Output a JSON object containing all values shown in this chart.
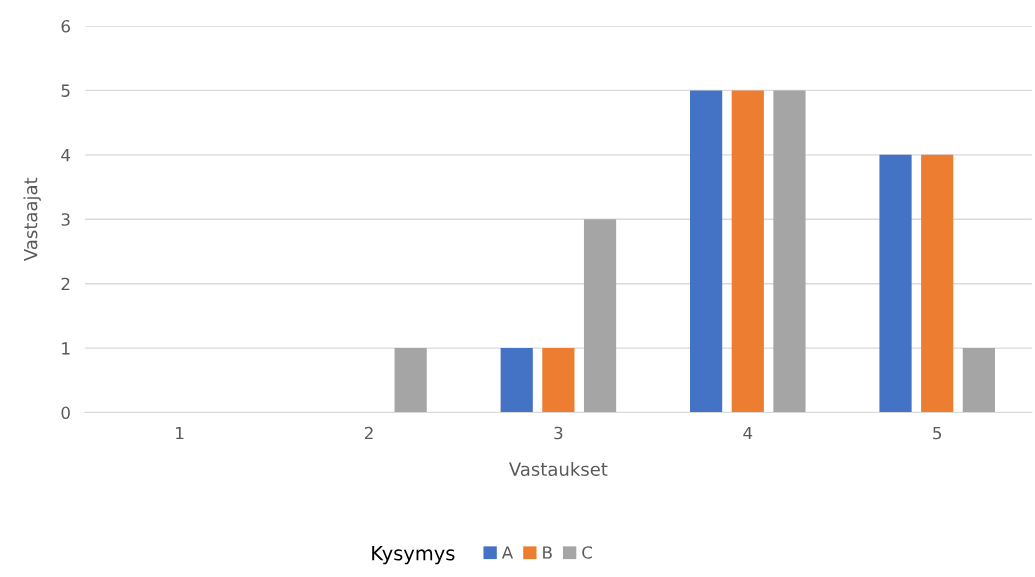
{
  "chart_data": {
    "type": "bar",
    "xlabel": "Vastaukset",
    "ylabel": "Vastaajat",
    "legend_title": "Kysymys",
    "categories": [
      "1",
      "2",
      "3",
      "4",
      "5"
    ],
    "series": [
      {
        "name": "A",
        "color": "#4472c4",
        "values": [
          0,
          0,
          1,
          5,
          4
        ]
      },
      {
        "name": "B",
        "color": "#ed7d31",
        "values": [
          0,
          0,
          1,
          5,
          4
        ]
      },
      {
        "name": "C",
        "color": "#a5a5a5",
        "values": [
          0,
          1,
          3,
          5,
          1
        ]
      }
    ],
    "ylim": [
      0,
      6
    ],
    "yticks": [
      0,
      1,
      2,
      3,
      4,
      5,
      6
    ],
    "grid": "y",
    "legend": "bottom"
  }
}
